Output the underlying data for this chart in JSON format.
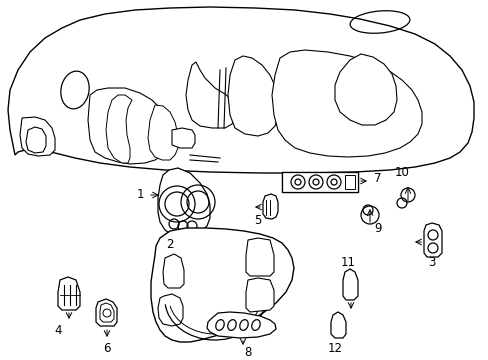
{
  "bg_color": "#ffffff",
  "line_color": "#000000",
  "figsize": [
    4.89,
    3.6
  ],
  "dpi": 100,
  "lw": 0.9
}
